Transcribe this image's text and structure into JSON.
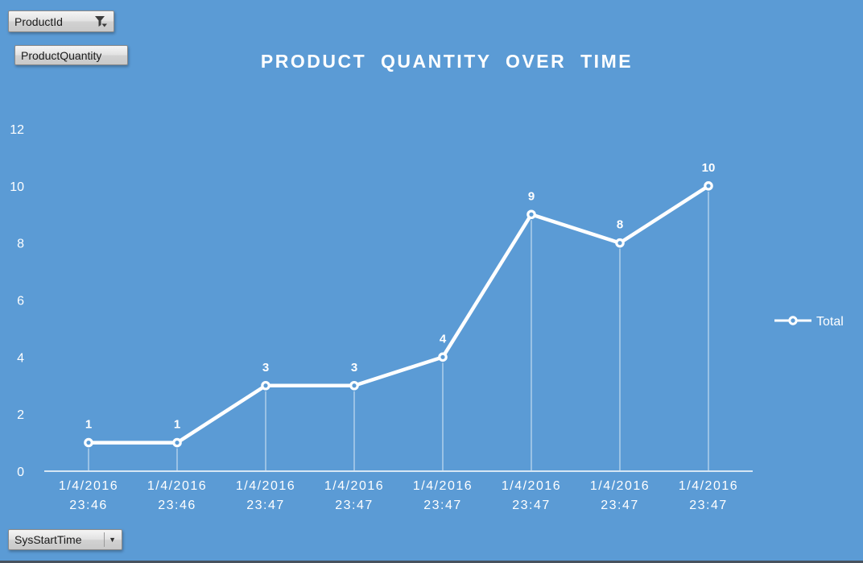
{
  "filters": {
    "product_id": {
      "label": "ProductId"
    },
    "product_quantity": {
      "label": "ProductQuantity"
    },
    "sys_start_time": {
      "label": "SysStartTime"
    }
  },
  "chart_data": {
    "type": "line",
    "title": "PRODUCT QUANTITY OVER TIME",
    "categories": [
      "1/4/2016\n23:46",
      "1/4/2016\n23:46",
      "1/4/2016\n23:47",
      "1/4/2016\n23:47",
      "1/4/2016\n23:47",
      "1/4/2016\n23:47",
      "1/4/2016\n23:47",
      "1/4/2016\n23:47"
    ],
    "series": [
      {
        "name": "Total",
        "values": [
          1,
          1,
          3,
          3,
          4,
          9,
          8,
          10
        ]
      }
    ],
    "ylim": [
      0,
      12
    ],
    "yticks": [
      0,
      2,
      4,
      6,
      8,
      10,
      12
    ],
    "legend_position": "right",
    "grid": false,
    "drop_lines": true,
    "colors": {
      "background": "#5B9BD5",
      "line": "#FFFFFF",
      "text": "#FFFFFF"
    }
  }
}
